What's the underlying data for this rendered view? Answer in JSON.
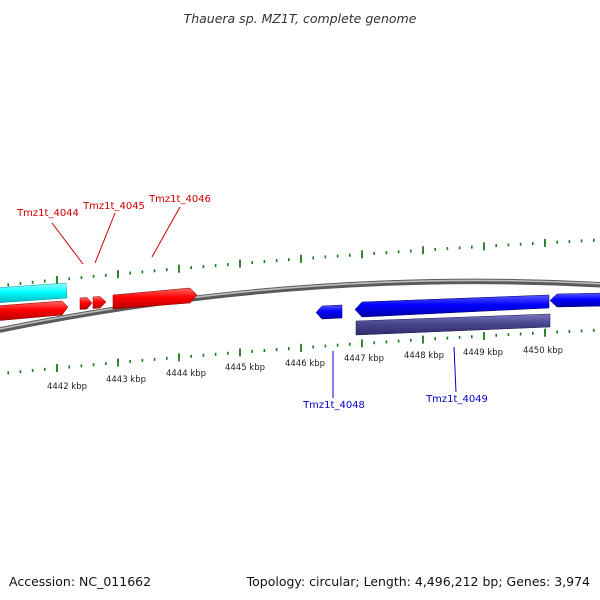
{
  "title": "Thauera sp. MZ1T, complete genome",
  "footer": {
    "accession": "Accession: NC_011662",
    "summary": "Topology: circular; Length: 4,496,212 bp; Genes: 3,974"
  },
  "colors": {
    "forward_gene": "#ff0000",
    "forward_label": "#cc0000",
    "reverse_gene": "#0000ff",
    "reverse_label": "#0000cc",
    "cyan_feature": "#00ffff",
    "purple_feature": "#4a4690",
    "backbone": "#808080",
    "tick": "#1a7a1a"
  },
  "scale_labels": [
    "4442 kbp",
    "4443 kbp",
    "4444 kbp",
    "4445 kbp",
    "4446 kbp",
    "4447 kbp",
    "4448 kbp",
    "4449 kbp",
    "4450 kbp"
  ],
  "genes": {
    "forward": [
      "Tmz1t_4044",
      "Tmz1t_4045",
      "Tmz1t_4046"
    ],
    "reverse": [
      "Tmz1t_4048",
      "Tmz1t_4049"
    ]
  }
}
